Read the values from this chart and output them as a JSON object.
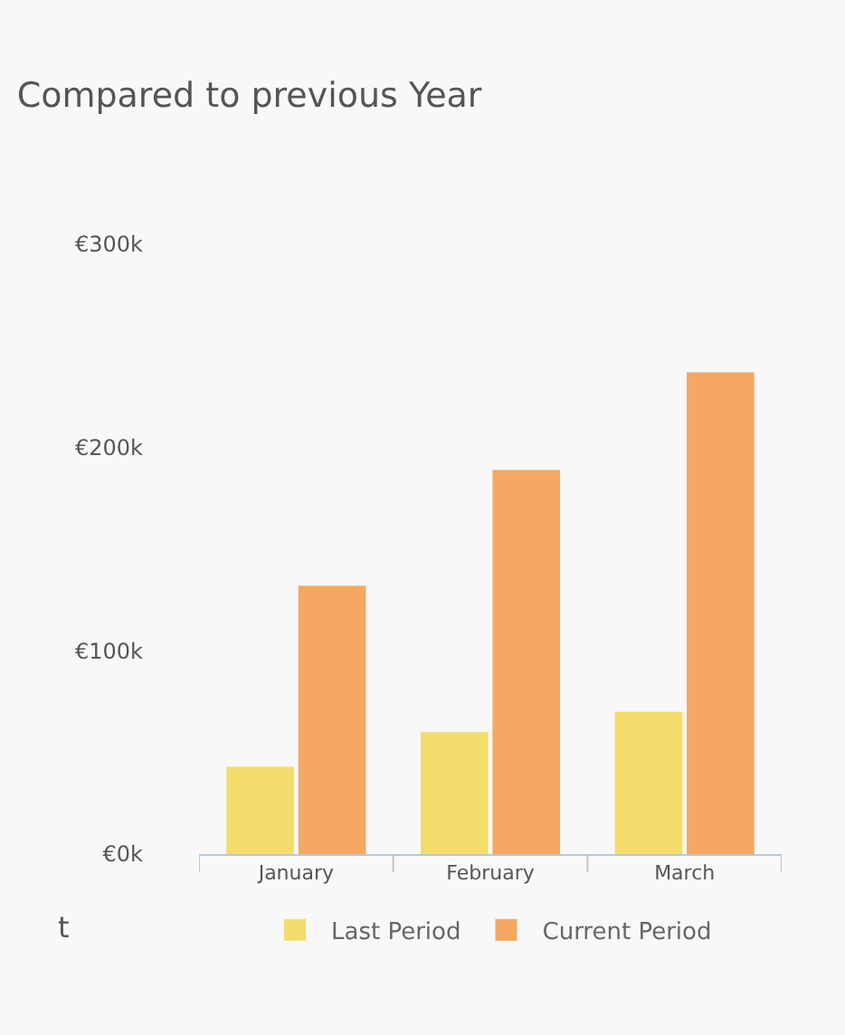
{
  "chart_data": {
    "type": "bar",
    "title": "Compared to previous Year",
    "categories": [
      "January",
      "February",
      "March"
    ],
    "series": [
      {
        "name": "Last Period",
        "color": "#f4dc6c",
        "values": [
          43000,
          60000,
          70000
        ]
      },
      {
        "name": "Current Period",
        "color": "#f4a862",
        "values": [
          132000,
          189000,
          237000
        ]
      }
    ],
    "ylim": [
      0,
      300000
    ],
    "yticks": [
      {
        "value": 0,
        "label": "€0k"
      },
      {
        "value": 100000,
        "label": "€100k"
      },
      {
        "value": 200000,
        "label": "€200k"
      },
      {
        "value": 300000,
        "label": "€300k"
      }
    ],
    "grid": false,
    "legend": "bottom",
    "annotations": [
      "t"
    ]
  }
}
